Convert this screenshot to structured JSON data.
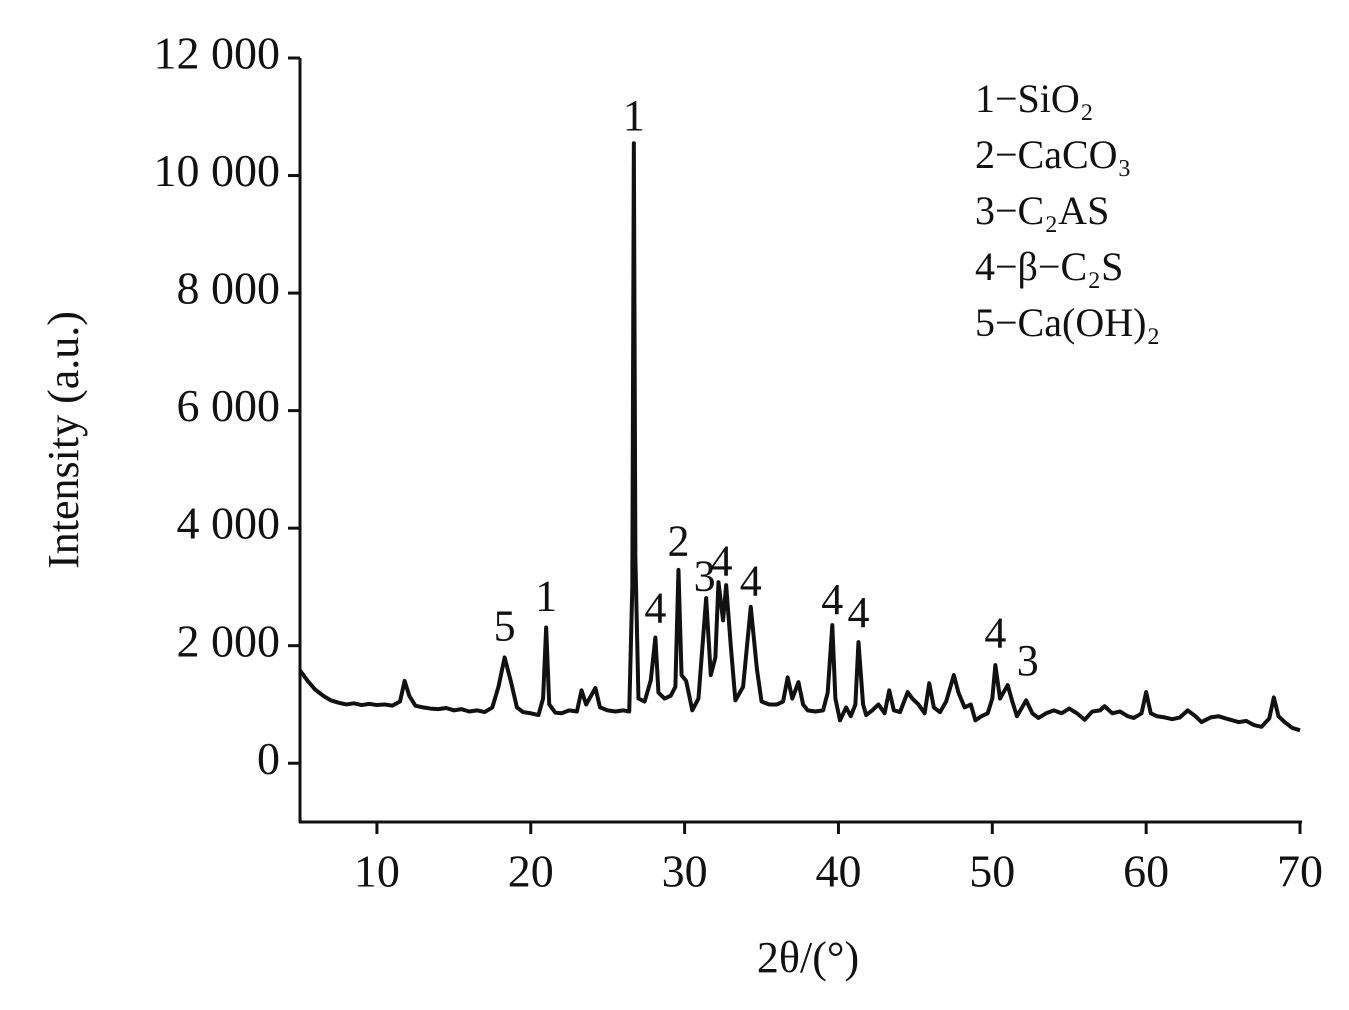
{
  "chart_data": {
    "type": "line",
    "x_label": "2θ/(°)",
    "y_label": "Intensity (a.u.)",
    "color": "#111111",
    "x": [
      5,
      5.5,
      6,
      6.5,
      7,
      7.5,
      8,
      8.5,
      9,
      9.5,
      10,
      10.5,
      11,
      11.5,
      11.8,
      12.1,
      12.5,
      13,
      13.5,
      14,
      14.5,
      15,
      15.5,
      16,
      16.5,
      17,
      17.5,
      17.9,
      18.3,
      18.7,
      19.1,
      19.5,
      20,
      20.5,
      20.8,
      21,
      21.2,
      21.6,
      22,
      22.5,
      23,
      23.3,
      23.6,
      24.2,
      24.5,
      25,
      25.5,
      26,
      26.4,
      26.6,
      26.7,
      26.8,
      27,
      27.4,
      27.8,
      28.1,
      28.3,
      28.7,
      29.1,
      29.4,
      29.6,
      29.8,
      30.1,
      30.5,
      30.9,
      31.4,
      31.7,
      32,
      32.2,
      32.5,
      32.7,
      33,
      33.3,
      33.8,
      34.3,
      34.7,
      35,
      35.5,
      36,
      36.4,
      36.7,
      37,
      37.4,
      37.7,
      38,
      38.5,
      39,
      39.3,
      39.6,
      39.8,
      40.1,
      40.5,
      40.8,
      41.1,
      41.3,
      41.6,
      41.8,
      42.2,
      42.6,
      43,
      43.3,
      43.6,
      44,
      44.5,
      44.8,
      45.2,
      45.6,
      45.9,
      46.2,
      46.6,
      47,
      47.5,
      47.8,
      48.2,
      48.6,
      48.9,
      49.3,
      49.7,
      50,
      50.2,
      50.5,
      51,
      51.3,
      51.6,
      52.2,
      52.6,
      53,
      53.5,
      54,
      54.5,
      55,
      55.5,
      56,
      56.5,
      57,
      57.3,
      57.8,
      58.3,
      58.8,
      59.2,
      59.7,
      60,
      60.3,
      60.7,
      61.2,
      61.7,
      62.2,
      62.7,
      63.2,
      63.6,
      64.2,
      64.7,
      65.2,
      66,
      66.5,
      67,
      67.5,
      68,
      68.3,
      68.6,
      69,
      69.5,
      70
    ],
    "values": [
      1580,
      1400,
      1250,
      1150,
      1070,
      1030,
      1000,
      1020,
      990,
      1010,
      990,
      1000,
      980,
      1050,
      1400,
      1150,
      980,
      950,
      930,
      920,
      940,
      900,
      920,
      880,
      900,
      870,
      950,
      1300,
      1800,
      1400,
      950,
      870,
      850,
      820,
      1100,
      2310,
      1000,
      860,
      850,
      900,
      880,
      1240,
      1000,
      1280,
      950,
      900,
      880,
      900,
      880,
      3000,
      10550,
      3500,
      1100,
      1050,
      1410,
      2140,
      1200,
      1100,
      1150,
      1300,
      3290,
      1500,
      1400,
      900,
      1100,
      2810,
      1500,
      1800,
      3080,
      2430,
      3030,
      2000,
      1070,
      1300,
      2660,
      1600,
      1050,
      1000,
      1000,
      1050,
      1460,
      1100,
      1380,
      1000,
      900,
      880,
      900,
      1200,
      2350,
      1100,
      730,
      950,
      800,
      1000,
      2060,
      1000,
      820,
      900,
      1000,
      850,
      1240,
      900,
      870,
      1210,
      1100,
      1000,
      850,
      1360,
      950,
      870,
      1050,
      1500,
      1200,
      950,
      1000,
      730,
      800,
      850,
      1100,
      1670,
      1100,
      1330,
      1050,
      800,
      1070,
      850,
      770,
      850,
      900,
      850,
      930,
      850,
      740,
      880,
      900,
      970,
      850,
      880,
      800,
      770,
      850,
      1210,
      850,
      800,
      780,
      750,
      780,
      900,
      800,
      700,
      780,
      800,
      760,
      700,
      720,
      650,
      620,
      760,
      1120,
      800,
      700,
      600,
      560
    ],
    "xlim": [
      5,
      70
    ],
    "xticks": [
      10,
      20,
      30,
      40,
      50,
      60,
      70
    ],
    "ylim": [
      -1000,
      12000
    ],
    "yticks": [
      {
        "value": 0,
        "label": "0"
      },
      {
        "value": 2000,
        "label": "2 000"
      },
      {
        "value": 4000,
        "label": "4 000"
      },
      {
        "value": 6000,
        "label": "6 000"
      },
      {
        "value": 8000,
        "label": "8 000"
      },
      {
        "value": 10000,
        "label": "10 000"
      },
      {
        "value": 12000,
        "label": "12 000"
      }
    ],
    "annotations": [
      {
        "text": "1",
        "x": 26.7,
        "y": 10950
      },
      {
        "text": "5",
        "x": 18.3,
        "y": 2260
      },
      {
        "text": "1",
        "x": 21,
        "y": 2770
      },
      {
        "text": "4",
        "x": 28.1,
        "y": 2570
      },
      {
        "text": "2",
        "x": 29.6,
        "y": 3710
      },
      {
        "text": "3",
        "x": 31.3,
        "y": 3110
      },
      {
        "text": "4",
        "x": 32.4,
        "y": 3370
      },
      {
        "text": "4",
        "x": 34.3,
        "y": 3030
      },
      {
        "text": "4",
        "x": 39.6,
        "y": 2710
      },
      {
        "text": "4",
        "x": 41.3,
        "y": 2490
      },
      {
        "text": "4",
        "x": 50.2,
        "y": 2140
      },
      {
        "text": "3",
        "x": 52.3,
        "y": 1670
      }
    ],
    "key": [
      "1−SiO₂",
      "2−CaCO₃",
      "3−C₂AS",
      "4−β−C₂S",
      "5−Ca(OH)₂"
    ]
  }
}
